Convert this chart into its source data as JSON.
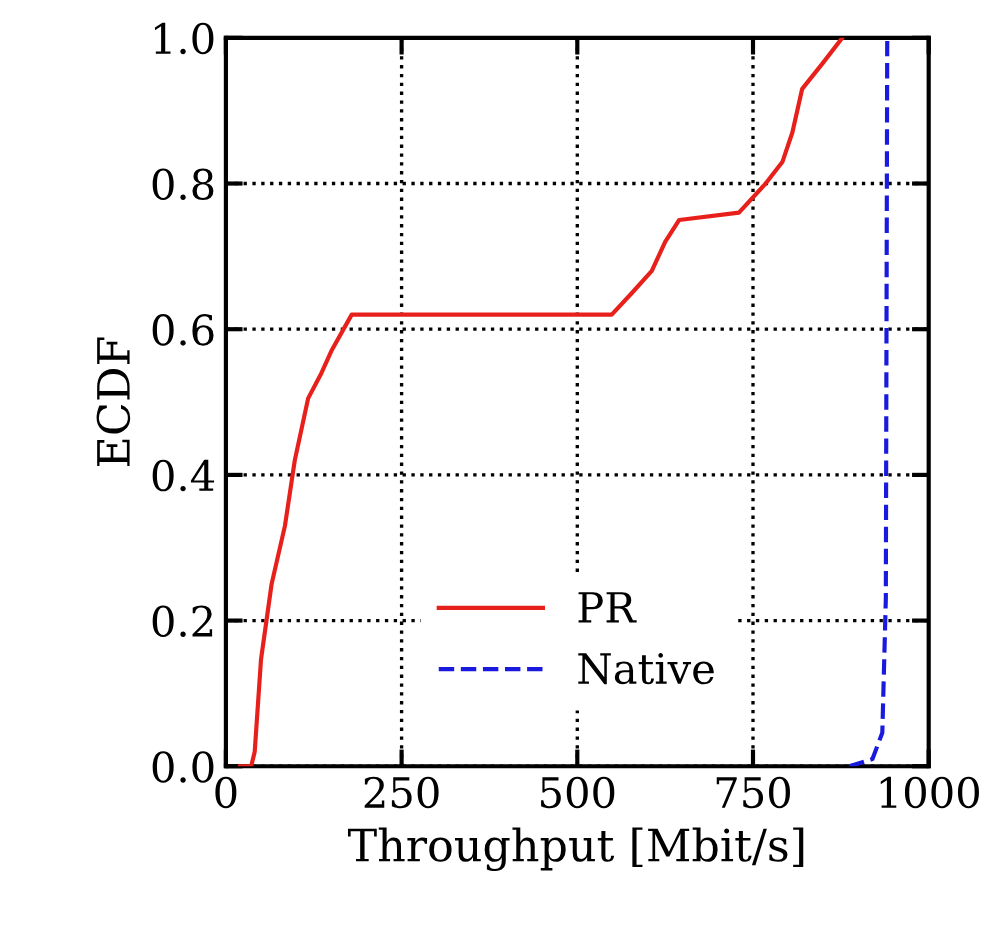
{
  "chart_data": {
    "type": "line",
    "xlabel": "Throughput [Mbit/s]",
    "ylabel": "ECDF",
    "xlim": [
      0,
      1000
    ],
    "ylim": [
      0,
      1.0
    ],
    "xticks": [
      0,
      250,
      500,
      750,
      1000
    ],
    "yticks": [
      {
        "value": 0,
        "label": "0.0"
      },
      0.2,
      0.4,
      0.6,
      0.8,
      {
        "value": 1,
        "label": "1.0"
      }
    ],
    "grid": true,
    "legend": "bottom",
    "series": [
      {
        "name": "PR",
        "color": "#e8201c",
        "line_style": "solid",
        "x": [
          20,
          36,
          41,
          50,
          65,
          84,
          98,
          117,
          136,
          150,
          179,
          549,
          578,
          606,
          625,
          645,
          730,
          768,
          792,
          806,
          820,
          849,
          877
        ],
        "values": [
          0,
          0,
          0.02,
          0.147,
          0.25,
          0.33,
          0.42,
          0.505,
          0.54,
          0.57,
          0.62,
          0.62,
          0.65,
          0.68,
          0.72,
          0.75,
          0.76,
          0.8,
          0.83,
          0.87,
          0.93,
          0.965,
          1.0
        ]
      },
      {
        "name": "Native",
        "color": "#1a1adf",
        "line_style": "dashed",
        "x": [
          887,
          920,
          934,
          939,
          941
        ],
        "values": [
          0,
          0.01,
          0.046,
          0.23,
          1.0
        ]
      }
    ]
  }
}
